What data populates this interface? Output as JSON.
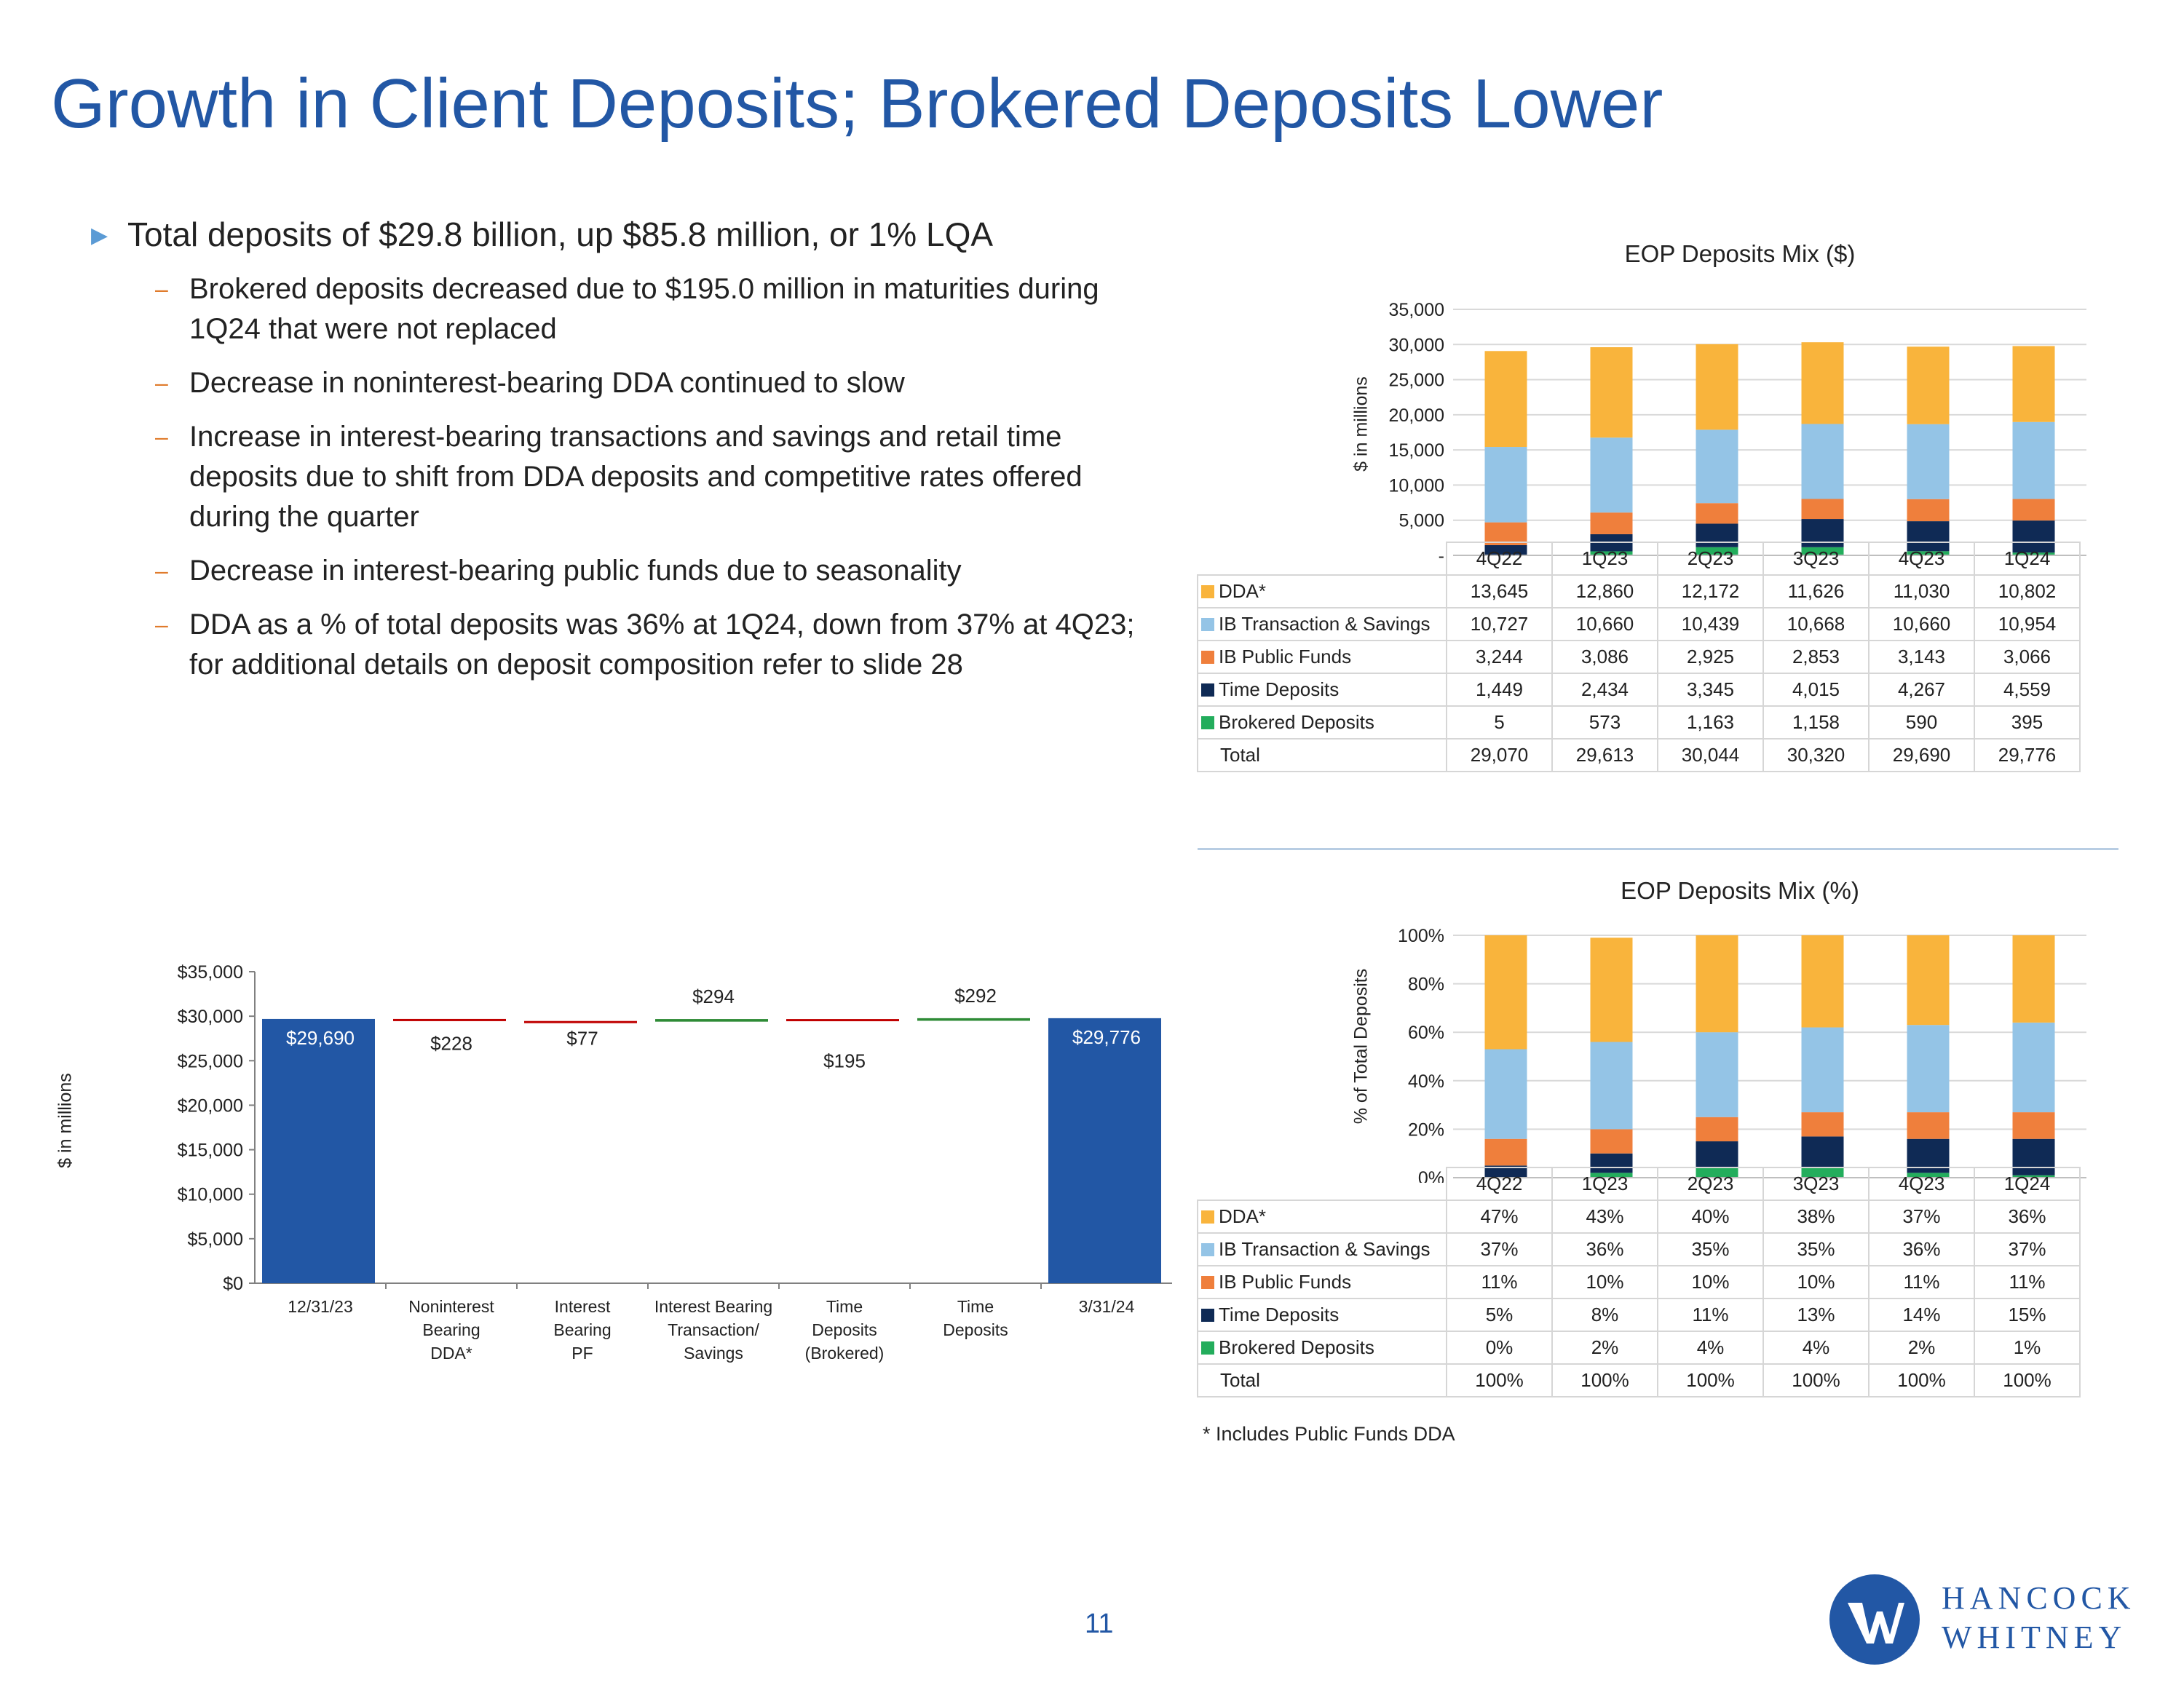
{
  "title": "Growth in Client Deposits; Brokered Deposits Lower",
  "bullets": {
    "main": "Total deposits of $29.8 billion, up $85.8 million, or 1% LQA",
    "subs": [
      "Brokered deposits decreased due to $195.0 million in maturities during 1Q24 that were not replaced",
      "Decrease in noninterest-bearing DDA continued to slow",
      "Increase in interest-bearing transactions and savings and retail time deposits due to shift from DDA deposits and competitive rates offered during the quarter",
      "Decrease in interest-bearing public funds due to seasonality",
      "DDA as a % of total deposits was 36% at 1Q24, down from 37% at 4Q23; for additional details on deposit composition refer to slide 28"
    ]
  },
  "colors": {
    "title": "#2257a5",
    "dda": "#f9b43c",
    "ib_transaction": "#94c4e6",
    "ib_public": "#ef7f3c",
    "time": "#0f2a55",
    "brokered": "#23ad5c",
    "waterfall_total": "#2257a5",
    "waterfall_decrease": "#c00000",
    "waterfall_increase": "#2e8b36"
  },
  "chart_data": [
    {
      "type": "bar",
      "stacked": true,
      "title": "EOP Deposits Mix ($)",
      "ylabel": "$ in millions",
      "ylim": [
        0,
        35000
      ],
      "yticks": [
        "-",
        "5,000",
        "10,000",
        "15,000",
        "20,000",
        "25,000",
        "30,000",
        "35,000"
      ],
      "categories": [
        "4Q22",
        "1Q23",
        "2Q23",
        "3Q23",
        "4Q23",
        "1Q24"
      ],
      "series": [
        {
          "name": "DDA*",
          "values": [
            13645,
            12860,
            12172,
            11626,
            11030,
            10802
          ],
          "labels": [
            "13,645",
            "12,860",
            "12,172",
            "11,626",
            "11,030",
            "10,802"
          ]
        },
        {
          "name": "IB Transaction & Savings",
          "values": [
            10727,
            10660,
            10439,
            10668,
            10660,
            10954
          ],
          "labels": [
            "10,727",
            "10,660",
            "10,439",
            "10,668",
            "10,660",
            "10,954"
          ]
        },
        {
          "name": "IB Public Funds",
          "values": [
            3244,
            3086,
            2925,
            2853,
            3143,
            3066
          ],
          "labels": [
            "3,244",
            "3,086",
            "2,925",
            "2,853",
            "3,143",
            "3,066"
          ]
        },
        {
          "name": "Time Deposits",
          "values": [
            1449,
            2434,
            3345,
            4015,
            4267,
            4559
          ],
          "labels": [
            "1,449",
            "2,434",
            "3,345",
            "4,015",
            "4,267",
            "4,559"
          ]
        },
        {
          "name": "Brokered Deposits",
          "values": [
            5,
            573,
            1163,
            1158,
            590,
            395
          ],
          "labels": [
            "5",
            "573",
            "1,163",
            "1,158",
            "590",
            "395"
          ]
        }
      ],
      "total_label": "Total",
      "totals": [
        "29,070",
        "29,613",
        "30,044",
        "30,320",
        "29,690",
        "29,776"
      ]
    },
    {
      "type": "bar",
      "stacked": true,
      "title": "EOP Deposits Mix (%)",
      "ylabel": "% of Total Deposits",
      "ylim": [
        0,
        100
      ],
      "yticks": [
        "0%",
        "20%",
        "40%",
        "60%",
        "80%",
        "100%"
      ],
      "categories": [
        "4Q22",
        "1Q23",
        "2Q23",
        "3Q23",
        "4Q23",
        "1Q24"
      ],
      "series": [
        {
          "name": "DDA*",
          "values": [
            47,
            43,
            40,
            38,
            37,
            36
          ],
          "labels": [
            "47%",
            "43%",
            "40%",
            "38%",
            "37%",
            "36%"
          ]
        },
        {
          "name": "IB Transaction & Savings",
          "values": [
            37,
            36,
            35,
            35,
            36,
            37
          ],
          "labels": [
            "37%",
            "36%",
            "35%",
            "35%",
            "36%",
            "37%"
          ]
        },
        {
          "name": "IB Public Funds",
          "values": [
            11,
            10,
            10,
            10,
            11,
            11
          ],
          "labels": [
            "11%",
            "10%",
            "10%",
            "10%",
            "11%",
            "11%"
          ]
        },
        {
          "name": "Time Deposits",
          "values": [
            5,
            8,
            11,
            13,
            14,
            15
          ],
          "labels": [
            "5%",
            "8%",
            "11%",
            "13%",
            "14%",
            "15%"
          ]
        },
        {
          "name": "Brokered Deposits",
          "values": [
            0,
            2,
            4,
            4,
            2,
            1
          ],
          "labels": [
            "0%",
            "2%",
            "4%",
            "4%",
            "2%",
            "1%"
          ]
        }
      ],
      "total_label": "Total",
      "totals": [
        "100%",
        "100%",
        "100%",
        "100%",
        "100%",
        "100%"
      ]
    },
    {
      "type": "bar",
      "subtype": "waterfall",
      "ylabel": "$ in millions",
      "ylim": [
        0,
        35000
      ],
      "yticks": [
        "$0",
        "$5,000",
        "$10,000",
        "$15,000",
        "$20,000",
        "$25,000",
        "$30,000",
        "$35,000"
      ],
      "categories": [
        [
          "12/31/23"
        ],
        [
          "Noninterest",
          "Bearing",
          "DDA*"
        ],
        [
          "Interest",
          "Bearing",
          "PF"
        ],
        [
          "Interest Bearing",
          "Transaction/",
          "Savings"
        ],
        [
          "Time",
          "Deposits",
          "(Brokered)"
        ],
        [
          "Time",
          "Deposits"
        ],
        [
          "3/31/24"
        ]
      ],
      "steps": [
        {
          "kind": "total",
          "value": 29690,
          "label": "$29,690"
        },
        {
          "kind": "decrease",
          "value": 228,
          "label": "$228"
        },
        {
          "kind": "decrease",
          "value": 77,
          "label": "$77"
        },
        {
          "kind": "increase",
          "value": 294,
          "label": "$294"
        },
        {
          "kind": "decrease",
          "value": 195,
          "label": "$195"
        },
        {
          "kind": "increase",
          "value": 292,
          "label": "$292"
        },
        {
          "kind": "total",
          "value": 29776,
          "label": "$29,776"
        }
      ]
    }
  ],
  "footnote": "* Includes Public Funds DDA",
  "page_number": "11",
  "logo": {
    "line1": "HANCOCK",
    "line2": "WHITNEY"
  }
}
